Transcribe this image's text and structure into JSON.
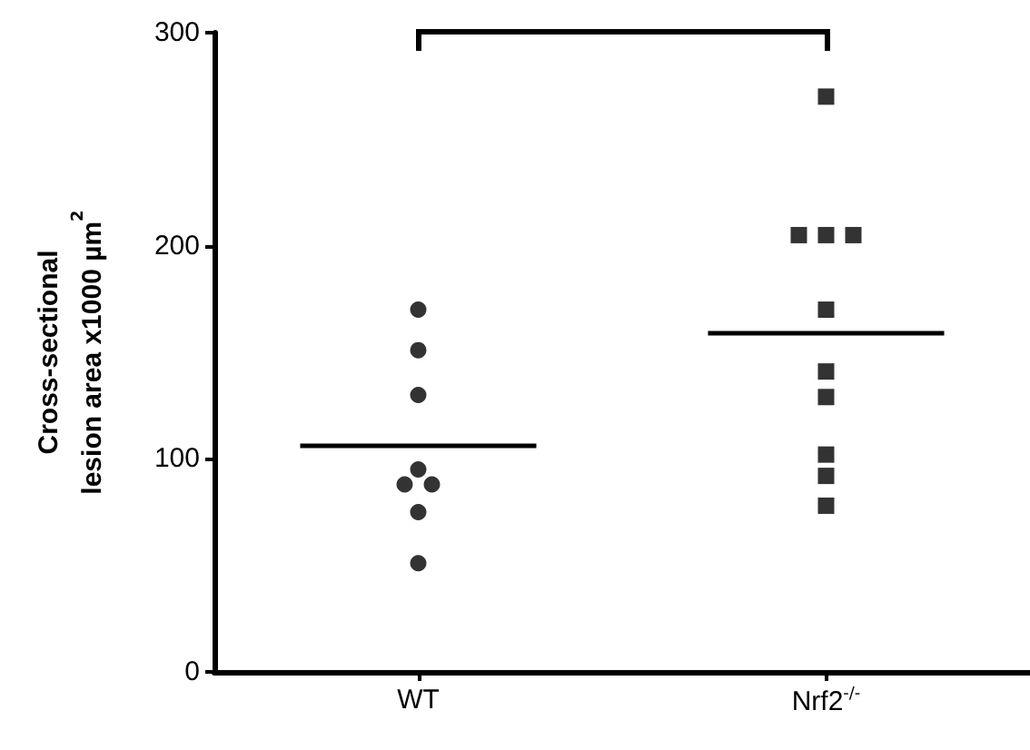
{
  "chart_data": {
    "type": "scatter",
    "ylabel": "Cross-sectional\nlesion area x1000 µm$^{2}$",
    "categories": [
      "WT",
      "Nrf2$^{-/-}$"
    ],
    "series": [
      {
        "marker": "circle",
        "color": "#000000",
        "x": [
          "WT",
          "WT",
          "WT",
          "WT",
          "WT",
          "WT",
          "WT",
          "WT"
        ],
        "values": [
          170,
          151,
          130,
          95,
          88,
          88,
          75,
          51
        ]
      },
      {
        "marker": "square",
        "color": "#000000",
        "x": [
          "Nrf2$^{-/-}$",
          "Nrf2$^{-/-}$",
          "Nrf2$^{-/-}$",
          "Nrf2$^{-/-}$",
          "Nrf2$^{-/-}$",
          "Nrf2$^{-/-}$",
          "Nrf2$^{-/-}$",
          "Nrf2$^{-/-}$",
          "Nrf2$^{-/-}$",
          "Nrf2$^{-/-}$"
        ],
        "values": [
          270,
          205,
          205,
          205,
          170,
          141,
          129,
          102,
          92,
          78
        ]
      }
    ],
    "ref_lines": [
      {
        "axis": "y",
        "value": 106,
        "color": "#000000"
      },
      {
        "axis": "y",
        "value": 159,
        "color": "#000000"
      }
    ],
    "ylim": [
      0,
      300
    ],
    "yticks": [
      0,
      100,
      200,
      300
    ],
    "grid": false
  }
}
